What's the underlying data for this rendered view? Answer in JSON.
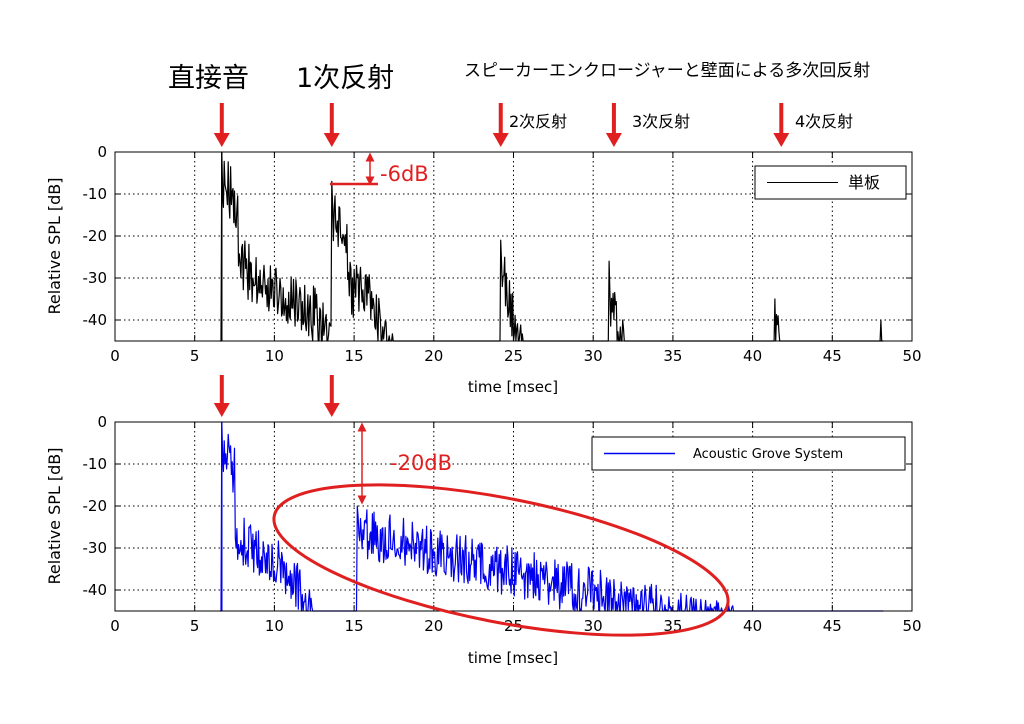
{
  "header": {
    "direct_sound": "直接音",
    "first_reflection": "1次反射",
    "enclosure_note": "スピーカーエンクロージャーと壁面による多次回反射",
    "reflections": [
      "2次反射",
      "3次反射",
      "4次反射"
    ]
  },
  "annotations": {
    "top_db": "-6dB",
    "bottom_db": "-20dB"
  },
  "colors": {
    "arrow": "#e02020",
    "series_top": "#000000",
    "series_bottom": "#0000ee",
    "annotation": "#e02020"
  },
  "chart_data": [
    {
      "type": "line",
      "xlabel": "time [msec]",
      "ylabel": "Relative SPL [dB]",
      "xlim": [
        0,
        50
      ],
      "ylim": [
        -45,
        0
      ],
      "xticks": [
        "0",
        "5",
        "10",
        "15",
        "20",
        "25",
        "30",
        "35",
        "40",
        "45",
        "50"
      ],
      "yticks": [
        "0",
        "-10",
        "-20",
        "-30",
        "-40"
      ],
      "grid": true,
      "legend_position": "top-right",
      "arrows_at": [
        6.7,
        13.6,
        24.2,
        31.3,
        41.8
      ],
      "peaks": [
        {
          "x": 6.7,
          "y": 0
        },
        {
          "x": 13.6,
          "y": -7
        },
        {
          "x": 24.2,
          "y": -21
        },
        {
          "x": 31.0,
          "y": -26
        },
        {
          "x": 41.4,
          "y": -35
        }
      ],
      "series": [
        {
          "name": "単板"
        }
      ]
    },
    {
      "type": "line",
      "xlabel": "time [msec]",
      "ylabel": "Relative SPL [dB]",
      "xlim": [
        0,
        50
      ],
      "ylim": [
        -45,
        0
      ],
      "xticks": [
        "0",
        "5",
        "10",
        "15",
        "20",
        "25",
        "30",
        "35",
        "40",
        "45",
        "50"
      ],
      "yticks": [
        "0",
        "-10",
        "-20",
        "-30",
        "-40"
      ],
      "grid": true,
      "legend_position": "top-right",
      "arrows_at": [
        6.7,
        13.6
      ],
      "peaks": [
        {
          "x": 6.7,
          "y": 0
        },
        {
          "x": 15.2,
          "y": -20
        }
      ],
      "series": [
        {
          "name": "Acoustic Grove System"
        }
      ]
    }
  ]
}
